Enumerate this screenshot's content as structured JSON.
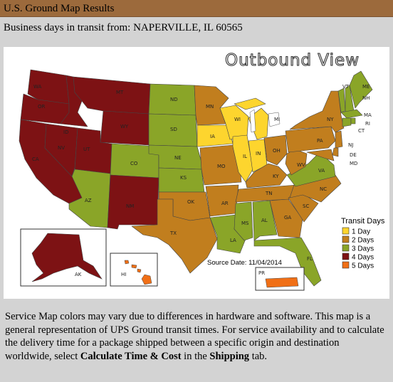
{
  "header": {
    "title": "U.S. Ground Map Results"
  },
  "origin": {
    "text": "Business days in transit from: NAPERVILLE, IL 60565"
  },
  "map": {
    "view_title": "Outbound View",
    "source_date": "Source Date: 11/04/2014",
    "colors": {
      "1": "#fdd52e",
      "2": "#c17e1e",
      "3": "#8aa528",
      "4": "#7d1214",
      "5": "#f06f16"
    },
    "legend": {
      "title": "Transit Days",
      "items": [
        {
          "days": "1",
          "label": "1 Day",
          "color": "#fdd52e"
        },
        {
          "days": "2",
          "label": "2 Days",
          "color": "#c17e1e"
        },
        {
          "days": "3",
          "label": "3 Days",
          "color": "#8aa528"
        },
        {
          "days": "4",
          "label": "4 Days",
          "color": "#7d1214"
        },
        {
          "days": "5",
          "label": "5 Days",
          "color": "#f06f16"
        }
      ]
    },
    "states": [
      {
        "abbr": "WA",
        "days": 4
      },
      {
        "abbr": "OR",
        "days": 4
      },
      {
        "abbr": "CA",
        "days": 4
      },
      {
        "abbr": "ID",
        "days": 4
      },
      {
        "abbr": "NV",
        "days": 4
      },
      {
        "abbr": "MT",
        "days": 4
      },
      {
        "abbr": "WY",
        "days": 4
      },
      {
        "abbr": "UT",
        "days": 4
      },
      {
        "abbr": "AZ",
        "days": 3
      },
      {
        "abbr": "CO",
        "days": 3
      },
      {
        "abbr": "NM",
        "days": 4
      },
      {
        "abbr": "ND",
        "days": 3
      },
      {
        "abbr": "SD",
        "days": 3
      },
      {
        "abbr": "NE",
        "days": 3
      },
      {
        "abbr": "KS",
        "days": 3
      },
      {
        "abbr": "OK",
        "days": 2
      },
      {
        "abbr": "TX",
        "days": 2
      },
      {
        "abbr": "MN",
        "days": 2
      },
      {
        "abbr": "IA",
        "days": 1
      },
      {
        "abbr": "MO",
        "days": 2
      },
      {
        "abbr": "AR",
        "days": 2
      },
      {
        "abbr": "LA",
        "days": 3
      },
      {
        "abbr": "WI",
        "days": 1
      },
      {
        "abbr": "IL",
        "days": 1
      },
      {
        "abbr": "MI",
        "days": 1
      },
      {
        "abbr": "IN",
        "days": 1
      },
      {
        "abbr": "OH",
        "days": 2
      },
      {
        "abbr": "KY",
        "days": 2
      },
      {
        "abbr": "TN",
        "days": 2
      },
      {
        "abbr": "MS",
        "days": 3
      },
      {
        "abbr": "AL",
        "days": 3
      },
      {
        "abbr": "GA",
        "days": 2
      },
      {
        "abbr": "FL",
        "days": 3
      },
      {
        "abbr": "SC",
        "days": 2
      },
      {
        "abbr": "NC",
        "days": 2
      },
      {
        "abbr": "VA",
        "days": 3
      },
      {
        "abbr": "WV",
        "days": 2
      },
      {
        "abbr": "PA",
        "days": 2
      },
      {
        "abbr": "NY",
        "days": 2
      },
      {
        "abbr": "VT",
        "days": 3
      },
      {
        "abbr": "NH",
        "days": 3
      },
      {
        "abbr": "ME",
        "days": 3
      },
      {
        "abbr": "MA",
        "days": 3
      },
      {
        "abbr": "CT",
        "days": 3
      },
      {
        "abbr": "RI",
        "days": 3
      },
      {
        "abbr": "NJ",
        "days": 2
      },
      {
        "abbr": "DE",
        "days": 2
      },
      {
        "abbr": "MD",
        "days": 2
      },
      {
        "abbr": "AK",
        "days": 4
      },
      {
        "abbr": "HI",
        "days": 5
      },
      {
        "abbr": "PR",
        "days": 5
      }
    ]
  },
  "footer": {
    "part1": "Service Map colors may vary due to differences in hardware and software. This map is a general representation of UPS Ground transit times. For service availability and to calculate the delivery time for a package shipped between a specific origin and destination worldwide, select ",
    "bold1": "Calculate Time & Cost",
    "part2": " in the ",
    "bold2": "Shipping",
    "part3": " tab."
  }
}
